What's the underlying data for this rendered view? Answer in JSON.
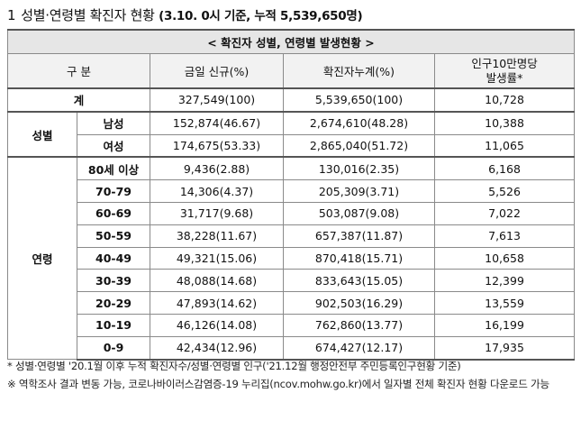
{
  "title": {
    "number": "1",
    "main": "성별·연령별 확진자 현황",
    "sub": "(3.10. 0시 기준, 누적 5,539,650명)"
  },
  "table": {
    "caption": "< 확진자 성별, 연령별 발생현황 >",
    "headers": {
      "category": "구 분",
      "today": "금일 신규(%)",
      "cumulative": "확진자누계(%)",
      "rate_line1": "인구10만명당",
      "rate_line2": "발생률*"
    },
    "total": {
      "label": "계",
      "today": "327,549(100)",
      "cumulative": "5,539,650(100)",
      "rate": "10,728"
    },
    "sex_group": "성별",
    "sex_rows": [
      {
        "label": "남성",
        "today": "152,874(46.67)",
        "cumulative": "2,674,610(48.28)",
        "rate": "10,388"
      },
      {
        "label": "여성",
        "today": "174,675(53.33)",
        "cumulative": "2,865,040(51.72)",
        "rate": "11,065"
      }
    ],
    "age_group": "연령",
    "age_rows": [
      {
        "label": "80세 이상",
        "today": "9,436(2.88)",
        "cumulative": "130,016(2.35)",
        "rate": "6,168"
      },
      {
        "label": "70-79",
        "today": "14,306(4.37)",
        "cumulative": "205,309(3.71)",
        "rate": "5,526"
      },
      {
        "label": "60-69",
        "today": "31,717(9.68)",
        "cumulative": "503,087(9.08)",
        "rate": "7,022"
      },
      {
        "label": "50-59",
        "today": "38,228(11.67)",
        "cumulative": "657,387(11.87)",
        "rate": "7,613"
      },
      {
        "label": "40-49",
        "today": "49,321(15.06)",
        "cumulative": "870,418(15.71)",
        "rate": "10,658"
      },
      {
        "label": "30-39",
        "today": "48,088(14.68)",
        "cumulative": "833,643(15.05)",
        "rate": "12,399"
      },
      {
        "label": "20-29",
        "today": "47,893(14.62)",
        "cumulative": "902,503(16.29)",
        "rate": "13,559"
      },
      {
        "label": "10-19",
        "today": "46,126(14.08)",
        "cumulative": "762,860(13.77)",
        "rate": "16,199"
      },
      {
        "label": "0-9",
        "today": "42,434(12.96)",
        "cumulative": "674,427(12.17)",
        "rate": "17,935"
      }
    ]
  },
  "notes": {
    "note1": "* 성별·연령별 '20.1월 이후 누적 확진자수/성별·연령별 인구('21.12월 행정안전부 주민등록인구현황 기준)",
    "note2": "※ 역학조사 결과 변동 가능, 코로나바이러스감염증-19 누리집(ncov.mohw.go.kr)에서 일자별 전체 확진자 현황 다운로드 가능"
  }
}
